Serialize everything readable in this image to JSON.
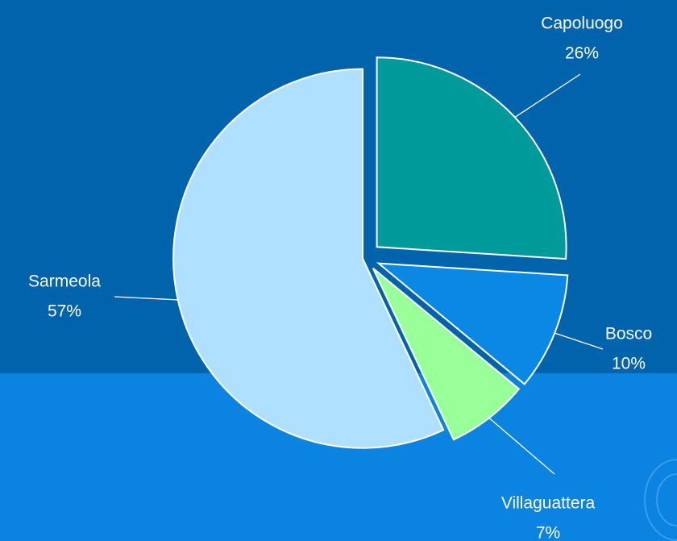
{
  "chart_data": {
    "type": "pie",
    "categories": [
      "Capoluogo",
      "Bosco",
      "Villaguattera",
      "Sarmeola"
    ],
    "values": [
      26,
      10,
      7,
      57
    ],
    "value_labels": [
      "26%",
      "10%",
      "7%",
      "57%"
    ],
    "colors": [
      "#009a9a",
      "#0a88e4",
      "#99ff99",
      "#b0e0ff"
    ]
  }
}
